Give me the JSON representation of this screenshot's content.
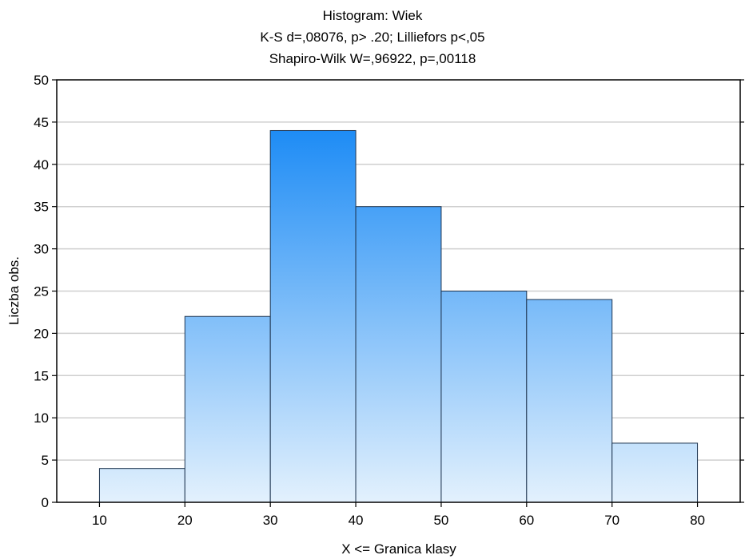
{
  "chart_data": {
    "type": "bar",
    "title": "Histogram: Wiek",
    "subtitle_lines": [
      "K-S d=,08076, p> .20; Lilliefors p<,05",
      "Shapiro-Wilk W=,96922, p=,00118"
    ],
    "xlabel": "X <= Granica klasy",
    "ylabel": "Liczba obs.",
    "bins": [
      {
        "from": 10,
        "to": 20,
        "count": 4
      },
      {
        "from": 20,
        "to": 30,
        "count": 22
      },
      {
        "from": 30,
        "to": 40,
        "count": 44
      },
      {
        "from": 40,
        "to": 50,
        "count": 35
      },
      {
        "from": 50,
        "to": 60,
        "count": 25
      },
      {
        "from": 60,
        "to": 70,
        "count": 24
      },
      {
        "from": 70,
        "to": 80,
        "count": 7
      }
    ],
    "xticks": [
      10,
      20,
      30,
      40,
      50,
      60,
      70,
      80
    ],
    "yticks": [
      0,
      5,
      10,
      15,
      20,
      25,
      30,
      35,
      40,
      45,
      50
    ],
    "xlim": [
      5,
      85
    ],
    "ylim": [
      0,
      50
    ],
    "grid": "horizontal",
    "colors": {
      "bar_top": "#1e8cf5",
      "bar_bottom": "#e3f1fd",
      "bar_stroke": "#1f3550",
      "grid": "#cfcfcf",
      "frame": "#000000"
    }
  }
}
